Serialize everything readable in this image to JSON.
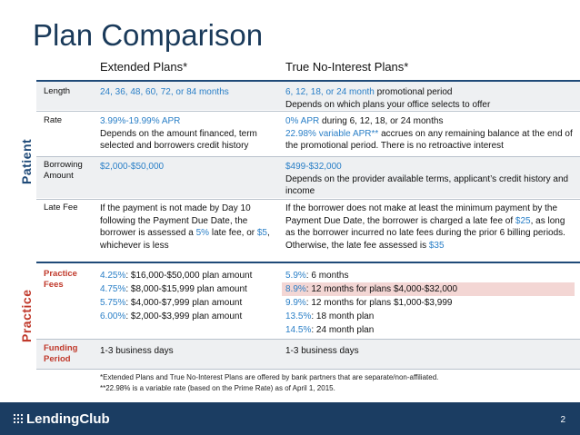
{
  "title": "Plan Comparison",
  "columns": {
    "extended": "Extended Plans*",
    "nointerest": "True No-Interest Plans*"
  },
  "section_labels": {
    "patient": "Patient",
    "practice": "Practice"
  },
  "rows": {
    "length": {
      "label": "Length",
      "c1": "24, 36, 48, 60, 72, or 84 months",
      "c2_blue": "6, 12, 18, or 24 month",
      "c2_text": " promotional period",
      "c2_line2": "Depends on which plans your office selects to offer"
    },
    "rate": {
      "label": "Rate",
      "c1_blue": "3.99%-19.99% APR",
      "c1_text": "Depends on the amount financed, term selected and borrowers credit history",
      "c2_blue1": "0% APR",
      "c2_text1": " during 6, 12, 18, or 24 months",
      "c2_blue2": "22.98% variable APR**",
      "c2_text2": " accrues on any remaining balance at the end of the promotional period. There is no retroactive interest"
    },
    "borrowing": {
      "label": "Borrowing Amount",
      "c1": "$2,000-$50,000",
      "c2_blue": "$499-$32,000",
      "c2_text": "Depends on the provider available terms, applicant’s credit history and income"
    },
    "latefee": {
      "label": "Late Fee",
      "c1_a": "If the payment is not made by Day 10 following the Payment Due Date, the borrower is assessed a ",
      "c1_b": "5%",
      "c1_c": " late fee, or ",
      "c1_d": "$5",
      "c1_e": ", whichever is less",
      "c2_a": "If the borrower does not make at least the minimum payment by the Payment Due Date, the borrower is charged a late fee of ",
      "c2_b": "$25",
      "c2_c": ", as long as the borrower incurred no late fees during the prior 6 billing periods. Otherwise, the late fee assessed is ",
      "c2_d": "$35"
    },
    "practicefees": {
      "label": "Practice Fees",
      "c1": [
        {
          "pct": "4.25%",
          "text": ": $16,000-$50,000 plan amount"
        },
        {
          "pct": "4.75%",
          "text": ": $8,000-$15,999 plan amount"
        },
        {
          "pct": "5.75%",
          "text": ": $4,000-$7,999 plan amount"
        },
        {
          "pct": "6.00%",
          "text": ": $2,000-$3,999 plan amount"
        }
      ],
      "c2": [
        {
          "pct": "5.9%",
          "text": ": 6 months"
        },
        {
          "pct": "8.9%",
          "text": ": 12 months for plans $4,000-$32,000"
        },
        {
          "pct": "9.9%",
          "text": ": 12 months for plans $1,000-$3,999"
        },
        {
          "pct": "13.5%",
          "text": ": 18 month plan"
        },
        {
          "pct": "14.5%",
          "text": ": 24 month plan"
        }
      ]
    },
    "funding": {
      "label": "Funding Period",
      "c1": "1-3 business days",
      "c2": "1-3 business days"
    }
  },
  "footnotes": [
    "*Extended Plans and True No-Interest Plans are offered by bank partners that are separate/non-affiliated.",
    "**22.98% is a variable rate (based on the Prime Rate) as of April 1, 2015."
  ],
  "logo": "LendingClub",
  "page_number": "2",
  "colors": {
    "title": "#1a3a5a",
    "accent_blue": "#2a7fc7",
    "section_red": "#c0392b",
    "footer_bar": "#1b3d62",
    "highlight": "#f3d6d4"
  }
}
